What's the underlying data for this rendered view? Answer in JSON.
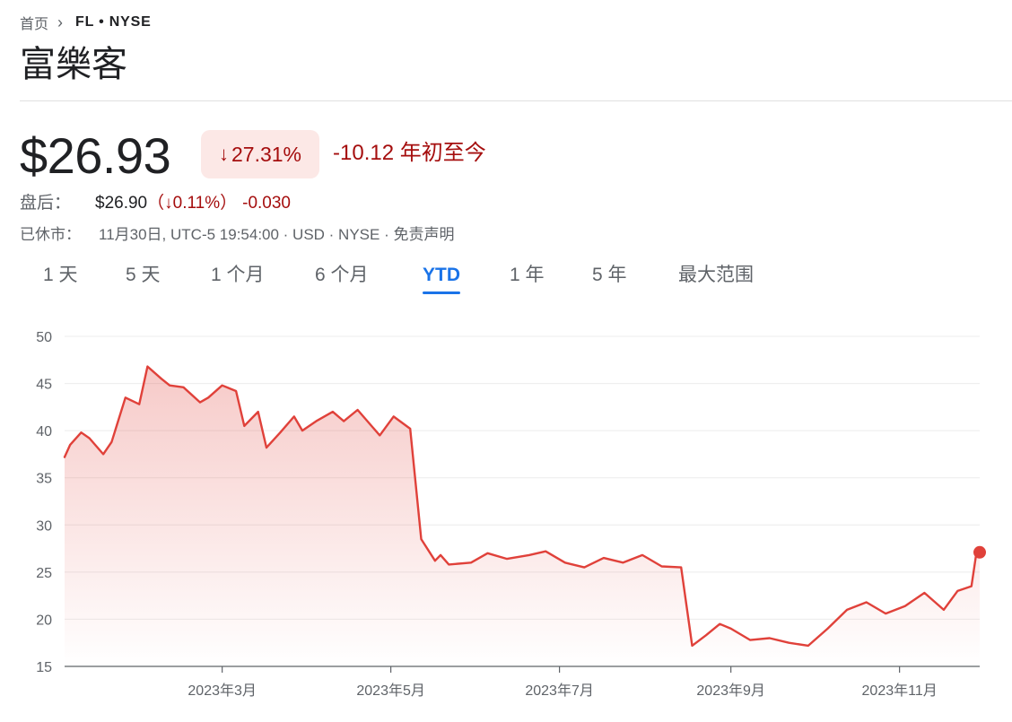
{
  "breadcrumb": {
    "home": "首页",
    "current": "FL • NYSE"
  },
  "title": "富樂客",
  "quote": {
    "price": "$26.93",
    "change_pct": "27.31%",
    "change_abs_period": "-10.12 年初至今"
  },
  "after_hours": {
    "label": "盘后：",
    "price": "$26.90",
    "open_paren": "（",
    "change_pct": "0.11%",
    "close_paren": "）",
    "change_abs": "-0.030"
  },
  "status": {
    "label": "已休市：",
    "details": "11月30日, UTC-5 19:54:00 · USD · NYSE · 免责声明"
  },
  "tabs": [
    {
      "label": "1 天"
    },
    {
      "label": "5 天"
    },
    {
      "label": "1 个月"
    },
    {
      "label": "6 个月"
    },
    {
      "label": "YTD",
      "active": true
    },
    {
      "label": "1 年"
    },
    {
      "label": "5 年"
    },
    {
      "label": "最大范围"
    }
  ],
  "colors": {
    "line": "#e0413a",
    "down": "#a50e0e",
    "active_tab": "#1a73e8"
  },
  "chart_data": {
    "type": "area",
    "ylim": [
      15,
      50
    ],
    "yticks": [
      50,
      45,
      40,
      35,
      30,
      25,
      20,
      15
    ],
    "xticks": [
      "2023年3月",
      "2023年5月",
      "2023年7月",
      "2023年9月",
      "2023年11月"
    ],
    "x": [
      "2023-01-03",
      "2023-01-05",
      "2023-01-09",
      "2023-01-12",
      "2023-01-17",
      "2023-01-20",
      "2023-01-25",
      "2023-01-30",
      "2023-02-02",
      "2023-02-07",
      "2023-02-10",
      "2023-02-15",
      "2023-02-21",
      "2023-02-24",
      "2023-03-01",
      "2023-03-06",
      "2023-03-09",
      "2023-03-14",
      "2023-03-17",
      "2023-03-22",
      "2023-03-27",
      "2023-03-30",
      "2023-04-04",
      "2023-04-10",
      "2023-04-14",
      "2023-04-19",
      "2023-04-24",
      "2023-04-27",
      "2023-05-02",
      "2023-05-08",
      "2023-05-12",
      "2023-05-17",
      "2023-05-19",
      "2023-05-22",
      "2023-05-30",
      "2023-06-05",
      "2023-06-12",
      "2023-06-20",
      "2023-06-26",
      "2023-07-03",
      "2023-07-10",
      "2023-07-17",
      "2023-07-24",
      "2023-07-31",
      "2023-08-07",
      "2023-08-14",
      "2023-08-18",
      "2023-08-23",
      "2023-08-28",
      "2023-09-01",
      "2023-09-08",
      "2023-09-15",
      "2023-09-22",
      "2023-09-29",
      "2023-10-06",
      "2023-10-13",
      "2023-10-20",
      "2023-10-27",
      "2023-11-03",
      "2023-11-10",
      "2023-11-17",
      "2023-11-22",
      "2023-11-27",
      "2023-11-29",
      "2023-11-30"
    ],
    "values": [
      37.2,
      38.5,
      39.8,
      39.2,
      37.5,
      38.8,
      43.5,
      42.8,
      46.8,
      45.5,
      44.8,
      44.6,
      43.0,
      43.5,
      44.8,
      44.2,
      40.5,
      42.0,
      38.2,
      39.8,
      41.5,
      40.0,
      41.0,
      42.0,
      41.0,
      42.2,
      40.5,
      39.5,
      41.5,
      40.2,
      28.5,
      26.2,
      26.8,
      25.8,
      26.0,
      27.0,
      26.4,
      26.8,
      27.2,
      26.0,
      25.5,
      26.5,
      26.0,
      26.8,
      25.6,
      25.5,
      17.2,
      18.3,
      19.5,
      19.0,
      17.8,
      18.0,
      17.5,
      17.2,
      19.0,
      21.0,
      21.8,
      20.6,
      21.4,
      22.8,
      21.0,
      23.0,
      23.5,
      27.4,
      27.1
    ]
  }
}
